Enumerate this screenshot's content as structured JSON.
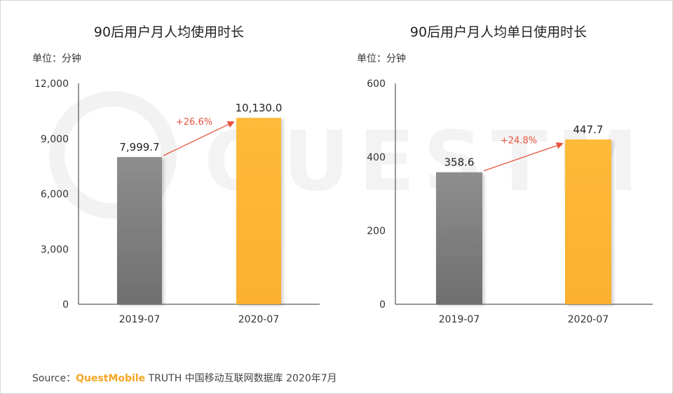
{
  "footer": {
    "source_label": "Source：",
    "brand": "QuestMobile",
    "rest": "TRUTH 中国移动互联网数据库 2020年7月"
  },
  "watermark_text": "QUESTMOBILE",
  "colors": {
    "bar_2019": "#6f6f6f",
    "bar_2020": "#fbb02f",
    "arrow": "#e8533d",
    "axis": "#333333"
  },
  "chart_data": [
    {
      "type": "bar",
      "title": "90后用户月人均使用时长",
      "unit": "单位：分钟",
      "categories": [
        "2019-07",
        "2020-07"
      ],
      "values": [
        7999.7,
        10130.0
      ],
      "value_labels": [
        "7,999.7",
        "10,130.0"
      ],
      "ylim": [
        0,
        12000
      ],
      "yticks": [
        0,
        3000,
        6000,
        9000,
        12000
      ],
      "ytick_labels": [
        "0",
        "3,000",
        "6,000",
        "9,000",
        "12,000"
      ],
      "growth_label": "+26.6%",
      "grid": false
    },
    {
      "type": "bar",
      "title": "90后用户月人均单日使用时长",
      "unit": "单位：分钟",
      "categories": [
        "2019-07",
        "2020-07"
      ],
      "values": [
        358.6,
        447.7
      ],
      "value_labels": [
        "358.6",
        "447.7"
      ],
      "ylim": [
        0,
        600
      ],
      "yticks": [
        0,
        200,
        400,
        600
      ],
      "ytick_labels": [
        "0",
        "200",
        "400",
        "600"
      ],
      "growth_label": "+24.8%",
      "grid": false
    }
  ]
}
